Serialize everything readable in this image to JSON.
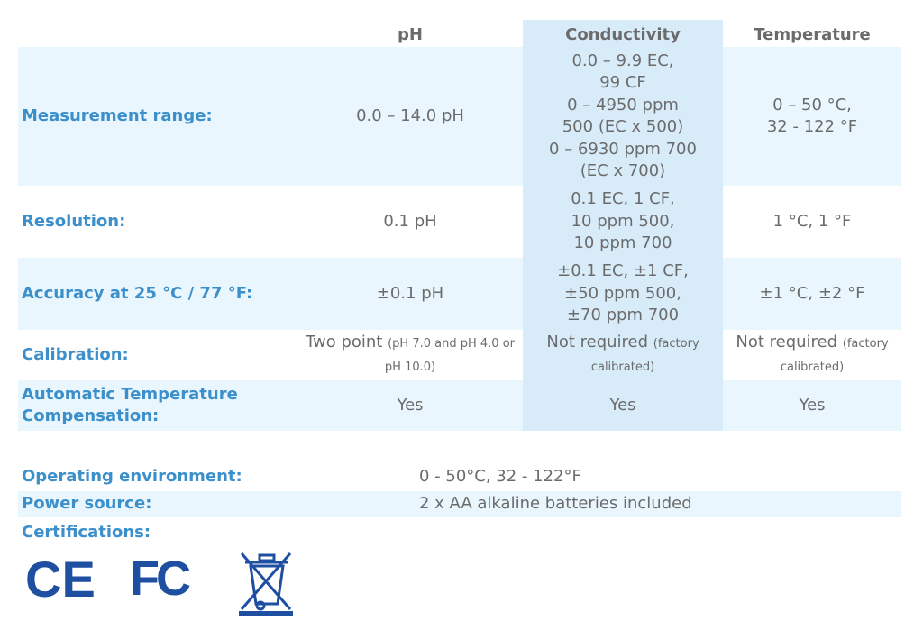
{
  "table": {
    "columns": [
      "pH",
      "Conductivity",
      "Temperature"
    ],
    "rows": [
      {
        "label": "Measurement range:",
        "cells": [
          [
            "0.0 – 14.0 pH"
          ],
          [
            "0.0 – 9.9 EC,",
            "99 CF",
            "0 – 4950 ppm",
            "500 (EC x 500)",
            "0 – 6930 ppm 700",
            "(EC x 700)"
          ],
          [
            "0 – 50 °C,",
            "32 - 122 °F"
          ]
        ]
      },
      {
        "label": "Resolution:",
        "cells": [
          [
            "0.1 pH"
          ],
          [
            "0.1 EC, 1 CF,",
            "10 ppm 500,",
            "10 ppm 700"
          ],
          [
            "1 °C, 1 °F"
          ]
        ]
      },
      {
        "label": "Accuracy at 25 °C / 77 °F:",
        "cells": [
          [
            "±0.1 pH"
          ],
          [
            "±0.1 EC, ±1 CF,",
            "±50 ppm 500,",
            "±70 ppm 700"
          ],
          [
            "±1 °C, ±2 °F"
          ]
        ]
      },
      {
        "label": "Calibration:",
        "cells": [
          {
            "main": "Two point",
            "note": "(pH 7.0 and pH 4.0 or pH 10.0)"
          },
          {
            "main": "Not required",
            "note": "(factory calibrated)"
          },
          {
            "main": "Not required",
            "note": "(factory calibrated)"
          }
        ]
      },
      {
        "label": [
          "Automatic Temperature",
          "Compensation:"
        ],
        "cells": [
          [
            "Yes"
          ],
          [
            "Yes"
          ],
          [
            "Yes"
          ]
        ]
      }
    ]
  },
  "specs": [
    {
      "label": "Operating environment:",
      "value": "0 - 50°C, 32 - 122°F"
    },
    {
      "label": "Power source:",
      "value": "2 x AA alkaline batteries included"
    }
  ],
  "certifications": {
    "label": "Certifications:",
    "logos": [
      "CE",
      "FC"
    ]
  }
}
